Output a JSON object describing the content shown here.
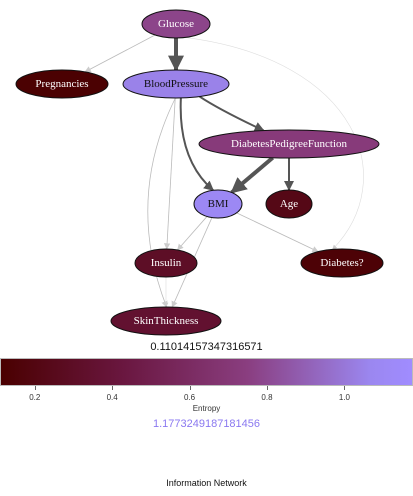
{
  "colors": {
    "edge_strong": "#555555",
    "edge_weak": "#bbbbbb",
    "gradient_low": "#4a0000",
    "gradient_high": "#a08cff"
  },
  "nodes": [
    {
      "id": "glucose",
      "label": "Glucose",
      "entropy": 0.78,
      "label_color": "light"
    },
    {
      "id": "pregnancies",
      "label": "Pregnancies",
      "entropy": 0.12,
      "label_color": "light"
    },
    {
      "id": "bloodpressure",
      "label": "BloodPressure",
      "entropy": 1.05,
      "label_color": "dark"
    },
    {
      "id": "dpf",
      "label": "DiabetesPedigreeFunction",
      "entropy": 0.72,
      "label_color": "light"
    },
    {
      "id": "bmi",
      "label": "BMI",
      "entropy": 1.1,
      "label_color": "dark"
    },
    {
      "id": "age",
      "label": "Age",
      "entropy": 0.22,
      "label_color": "light"
    },
    {
      "id": "insulin",
      "label": "Insulin",
      "entropy": 0.3,
      "label_color": "light"
    },
    {
      "id": "diabetes",
      "label": "Diabetes?",
      "entropy": 0.14,
      "label_color": "light"
    },
    {
      "id": "skinthickness",
      "label": "SkinThickness",
      "entropy": 0.35,
      "label_color": "light"
    }
  ],
  "edges": [
    {
      "from": "glucose",
      "to": "bloodpressure",
      "strength": "strong"
    },
    {
      "from": "glucose",
      "to": "pregnancies",
      "strength": "weak"
    },
    {
      "from": "glucose",
      "to": "diabetes",
      "strength": "faint"
    },
    {
      "from": "bloodpressure",
      "to": "dpf",
      "strength": "medium"
    },
    {
      "from": "bloodpressure",
      "to": "bmi",
      "strength": "medium"
    },
    {
      "from": "bloodpressure",
      "to": "insulin",
      "strength": "weak"
    },
    {
      "from": "bloodpressure",
      "to": "skinthickness",
      "strength": "weak"
    },
    {
      "from": "dpf",
      "to": "bmi",
      "strength": "strong"
    },
    {
      "from": "dpf",
      "to": "age",
      "strength": "medium"
    },
    {
      "from": "bmi",
      "to": "insulin",
      "strength": "weak"
    },
    {
      "from": "bmi",
      "to": "skinthickness",
      "strength": "weak"
    },
    {
      "from": "bmi",
      "to": "diabetes",
      "strength": "weak"
    },
    {
      "from": "insulin",
      "to": "skinthickness",
      "strength": "faint"
    }
  ],
  "colorbar": {
    "min_value": "0.11014157347316571",
    "max_value": "1.1773249187181456",
    "range": [
      0.11014157347316571,
      1.1773249187181456
    ],
    "ticks": [
      "0.2",
      "0.4",
      "0.6",
      "0.8",
      "1.0"
    ],
    "tick_values": [
      0.2,
      0.4,
      0.6,
      0.8,
      1.0
    ],
    "axis_label": "Entropy"
  },
  "footer": "Information Network"
}
